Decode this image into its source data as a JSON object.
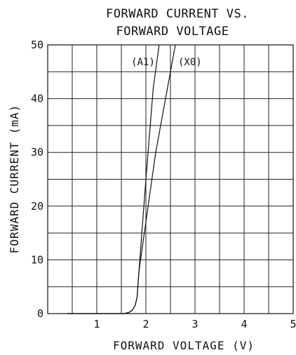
{
  "chart_data": {
    "type": "line",
    "title_lines": [
      "FORWARD CURRENT VS.",
      "FORWARD VOLTAGE"
    ],
    "xlabel": "FORWARD VOLTAGE (V)",
    "ylabel": "FORWARD CURRENT (mA)",
    "xlim": [
      0,
      5
    ],
    "ylim": [
      0,
      50
    ],
    "x_ticks": [
      1,
      2,
      3,
      4,
      5
    ],
    "y_ticks": [
      0,
      10,
      20,
      30,
      40,
      50
    ],
    "x_grid_step": 0.5,
    "y_grid_step": 5,
    "grid": true,
    "colors": {
      "line": "#111111",
      "grid": "#222222",
      "background": "#ffffff"
    },
    "series": [
      {
        "name": "(A1)",
        "x": [
          0.4,
          1.55,
          1.65,
          1.72,
          1.78,
          1.82,
          1.86,
          2.0,
          2.15,
          2.27
        ],
        "y": [
          0,
          0,
          0.2,
          0.6,
          1.5,
          3.0,
          8.0,
          25.0,
          42.0,
          50.0
        ]
      },
      {
        "name": "(X0)",
        "x": [
          0.4,
          1.55,
          1.65,
          1.72,
          1.78,
          1.82,
          1.86,
          2.2,
          2.6
        ],
        "y": [
          0,
          0,
          0.2,
          0.6,
          1.5,
          3.0,
          8.0,
          30.0,
          50.0
        ]
      }
    ]
  }
}
